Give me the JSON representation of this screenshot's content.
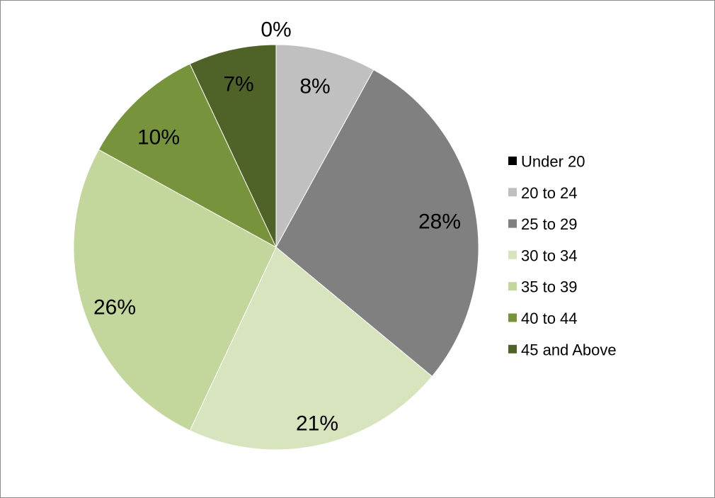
{
  "chart_data": {
    "type": "pie",
    "categories": [
      "Under 20",
      "20 to 24",
      "25 to 29",
      "30 to 34",
      "35 to 39",
      "40 to 44",
      "45 and Above"
    ],
    "values": [
      0,
      8,
      28,
      21,
      26,
      10,
      7
    ],
    "data_labels": [
      "0%",
      "8%",
      "28%",
      "21%",
      "26%",
      "10%",
      "7%"
    ],
    "colors": [
      "#000000",
      "#c0c0c0",
      "#808080",
      "#d7e4bd",
      "#c3d69b",
      "#77933c",
      "#4f6228"
    ],
    "legend": {
      "position": "right",
      "entries": [
        "Under 20",
        "20 to 24",
        "25 to 29",
        "30 to 34",
        "35 to 39",
        "40 to 44",
        "45 and Above"
      ]
    },
    "title": "",
    "start_angle_deg": 0,
    "direction": "clockwise"
  }
}
